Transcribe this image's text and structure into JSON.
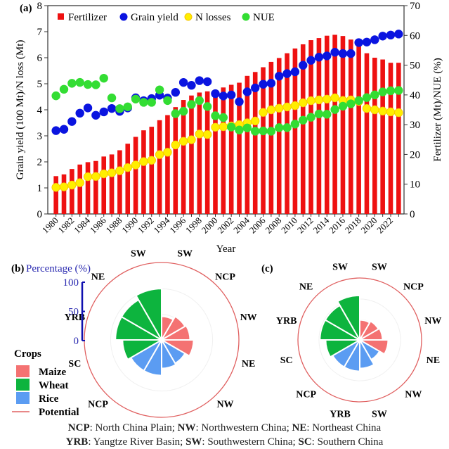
{
  "panel_labels": {
    "a": "(a)",
    "b": "(b)",
    "c": "(c)"
  },
  "chart_data": [
    {
      "type": "bar",
      "panel": "(a)",
      "xlabel": "Year",
      "ylabel_left": "Grain yield (100 Mt)/N loss (Mt)",
      "ylabel_right": "Fertilizer (Mt)/NUE (%)",
      "ylim_left": [
        0,
        8
      ],
      "ylim_right": [
        0,
        70
      ],
      "yticks_left": [
        0,
        1,
        2,
        3,
        4,
        5,
        6,
        7,
        8
      ],
      "yticks_right": [
        0,
        10,
        20,
        30,
        40,
        50,
        60,
        70
      ],
      "xtick_labels": [
        "1980",
        "1982",
        "1984",
        "1986",
        "1988",
        "1990",
        "1992",
        "1994",
        "1996",
        "1998",
        "2000",
        "2002",
        "2004",
        "2006",
        "2008",
        "2010",
        "2012",
        "2014",
        "2016",
        "2018",
        "2020",
        "2022"
      ],
      "legend": [
        "Fertilizer",
        "Grain yield",
        "N losses",
        "NUE"
      ],
      "legend_position": "top-left",
      "x": [
        1980,
        1981,
        1982,
        1983,
        1984,
        1985,
        1986,
        1987,
        1988,
        1989,
        1990,
        1991,
        1992,
        1993,
        1994,
        1995,
        1996,
        1997,
        1998,
        1999,
        2000,
        2001,
        2002,
        2003,
        2004,
        2005,
        2006,
        2007,
        2008,
        2009,
        2010,
        2011,
        2012,
        2013,
        2014,
        2015,
        2016,
        2017,
        2018,
        2019,
        2020,
        2021,
        2022,
        2023
      ],
      "series": [
        {
          "name": "Fertilizer",
          "kind": "bar",
          "axis": "right",
          "color": "#ee1111",
          "values": [
            12.7,
            13.3,
            15.1,
            16.6,
            17.4,
            17.8,
            19.3,
            20.0,
            21.4,
            23.6,
            25.9,
            28.1,
            29.3,
            31.5,
            33.2,
            35.9,
            38.3,
            39.8,
            40.8,
            41.2,
            41.5,
            42.5,
            43.4,
            44.1,
            46.4,
            47.7,
            49.3,
            51.1,
            52.4,
            54.0,
            55.6,
            57.0,
            58.4,
            59.1,
            59.9,
            60.2,
            59.8,
            58.6,
            56.5,
            54.0,
            52.5,
            51.9,
            50.8,
            50.8
          ]
        },
        {
          "name": "Grain yield",
          "kind": "scatter",
          "axis": "left",
          "color": "#0a14e0",
          "values": [
            3.2,
            3.25,
            3.55,
            3.87,
            4.07,
            3.79,
            3.92,
            4.05,
            3.94,
            4.07,
            4.46,
            4.35,
            4.43,
            4.56,
            4.45,
            4.67,
            5.05,
            4.94,
            5.12,
            5.08,
            4.62,
            4.53,
            4.57,
            4.31,
            4.69,
            4.84,
            4.98,
            5.02,
            5.29,
            5.39,
            5.46,
            5.71,
            5.9,
            6.02,
            6.07,
            6.21,
            6.16,
            6.16,
            6.58,
            6.6,
            6.69,
            6.83,
            6.87,
            6.91
          ]
        },
        {
          "name": "N losses",
          "kind": "scatter",
          "axis": "left",
          "color": "#ffee00",
          "values": [
            1.02,
            1.04,
            1.11,
            1.2,
            1.43,
            1.44,
            1.54,
            1.58,
            1.66,
            1.78,
            1.88,
            2.01,
            2.06,
            2.28,
            2.37,
            2.65,
            2.79,
            2.85,
            3.07,
            3.05,
            3.33,
            3.35,
            3.38,
            3.43,
            3.5,
            3.57,
            3.9,
            4.0,
            4.06,
            4.11,
            4.16,
            4.27,
            4.35,
            4.38,
            4.41,
            4.46,
            4.36,
            4.38,
            4.32,
            4.05,
            4.0,
            3.95,
            3.92,
            3.89
          ]
        },
        {
          "name": "NUE",
          "kind": "scatter",
          "axis": "right",
          "color": "#33dd33",
          "values": [
            39.7,
            41.9,
            43.9,
            44.2,
            43.5,
            43.4,
            45.6,
            39.0,
            35.4,
            36.0,
            38.6,
            37.5,
            37.5,
            41.7,
            38.1,
            33.7,
            34.5,
            36.8,
            38.1,
            36.1,
            33.0,
            32.4,
            29.2,
            28.2,
            28.9,
            27.8,
            27.9,
            27.8,
            29.0,
            29.0,
            30.2,
            31.5,
            32.5,
            33.6,
            33.5,
            35.1,
            36.2,
            37.0,
            38.1,
            39.1,
            40.0,
            41.0,
            41.4,
            41.5
          ]
        }
      ]
    },
    {
      "type": "rose",
      "panel": "(b)",
      "radial_axis_label": "Percentage (%)",
      "radial_ticks": [
        0,
        50,
        100
      ],
      "rlim": [
        0,
        100
      ],
      "potential_radius_pct": 100,
      "sectors": [
        {
          "label": "SW",
          "crop": "Maize",
          "value": 33
        },
        {
          "label": "NCP",
          "crop": "Maize",
          "value": 38
        },
        {
          "label": "NW",
          "crop": "Maize",
          "value": 40
        },
        {
          "label": "NE",
          "crop": "Maize",
          "value": 45
        },
        {
          "label": "NW",
          "crop": "Rice",
          "value": 38
        },
        {
          "label": "SW",
          "crop": "Rice",
          "value": 40
        },
        {
          "label": "YRB",
          "crop": "Rice",
          "value": 50
        },
        {
          "label": "NCP",
          "crop": "Rice",
          "value": 50
        },
        {
          "label": "SC",
          "crop": "Wheat",
          "value": 55
        },
        {
          "label": "YRB",
          "crop": "Wheat",
          "value": 65
        },
        {
          "label": "NE",
          "crop": "Wheat",
          "value": 65
        },
        {
          "label": "SW",
          "crop": "Wheat",
          "value": 72
        }
      ]
    },
    {
      "type": "rose",
      "panel": "(c)",
      "rlim": [
        0,
        100
      ],
      "potential_radius_pct": 100,
      "sectors": [
        {
          "label": "SW",
          "crop": "Maize",
          "value": 35
        },
        {
          "label": "NCP",
          "crop": "Maize",
          "value": 38
        },
        {
          "label": "NW",
          "crop": "Maize",
          "value": 40
        },
        {
          "label": "NE",
          "crop": "Maize",
          "value": 50
        },
        {
          "label": "NW",
          "crop": "Rice",
          "value": 40
        },
        {
          "label": "SW",
          "crop": "Rice",
          "value": 50
        },
        {
          "label": "YRB",
          "crop": "Rice",
          "value": 55
        },
        {
          "label": "NCP",
          "crop": "Rice",
          "value": 55
        },
        {
          "label": "SC",
          "crop": "Wheat",
          "value": 60
        },
        {
          "label": "YRB",
          "crop": "Wheat",
          "value": 70
        },
        {
          "label": "NE",
          "crop": "Wheat",
          "value": 70
        },
        {
          "label": "SW",
          "crop": "Wheat",
          "value": 78
        }
      ]
    }
  ],
  "crops_legend": {
    "title": "Crops",
    "items": [
      {
        "label": "Maize",
        "color": "#f47272"
      },
      {
        "label": "Wheat",
        "color": "#0db43e"
      },
      {
        "label": "Rice",
        "color": "#5b9cf2"
      },
      {
        "label": "Potential",
        "color": "#e06060",
        "kind": "line"
      }
    ]
  },
  "footnote": {
    "line1": [
      {
        "abbr": "NCP",
        "text": ": North China Plain; "
      },
      {
        "abbr": "NW",
        "text": ": Northwestern China; "
      },
      {
        "abbr": "NE",
        "text": ": Northeast China"
      }
    ],
    "line2": [
      {
        "abbr": "YRB",
        "text": ": Yangtze River Basin; "
      },
      {
        "abbr": "SW",
        "text": ": Southwestern China; "
      },
      {
        "abbr": "SC",
        "text": ": Southern China"
      }
    ]
  }
}
